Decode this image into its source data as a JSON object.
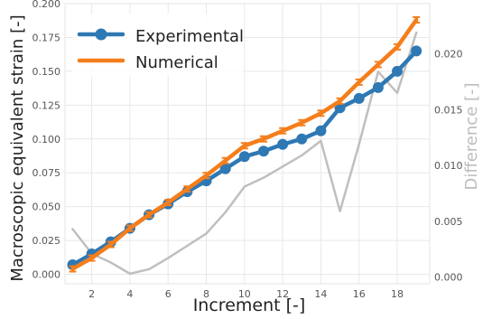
{
  "chart_data": {
    "type": "line",
    "xlabel": "Increment [-]",
    "ylabel": "Macroscopic equivalent strain [-]",
    "y2label": "Difference [-]",
    "xlim": [
      0.6,
      19.7
    ],
    "ylim": [
      -0.007,
      0.2
    ],
    "y2lim": [
      -0.0006,
      0.0245
    ],
    "x_ticks": [
      2,
      4,
      6,
      8,
      10,
      12,
      14,
      16,
      18
    ],
    "y_ticks": [
      "0.000",
      "0.025",
      "0.050",
      "0.075",
      "0.100",
      "0.125",
      "0.150",
      "0.175",
      "0.200"
    ],
    "y2_ticks": [
      "0.000",
      "0.005",
      "0.010",
      "0.015",
      "0.020"
    ],
    "grid": true,
    "legend_position": "top-left",
    "x": [
      1,
      2,
      3,
      4,
      5,
      6,
      7,
      8,
      9,
      10,
      11,
      12,
      13,
      14,
      15,
      16,
      17,
      18,
      19
    ],
    "series": [
      {
        "name": "Experimental",
        "color": "#2e78b4",
        "axis": "left",
        "marker": "circle",
        "values": [
          0.007,
          0.015,
          0.024,
          0.034,
          0.044,
          0.052,
          0.061,
          0.069,
          0.078,
          0.087,
          0.091,
          0.096,
          0.1,
          0.106,
          0.123,
          0.13,
          0.138,
          0.15,
          0.165
        ]
      },
      {
        "name": "Numerical",
        "color": "#f57e1c",
        "axis": "left",
        "marker": "errorbar",
        "values": [
          0.004,
          0.012,
          0.022,
          0.034,
          0.044,
          0.053,
          0.063,
          0.073,
          0.084,
          0.095,
          0.1,
          0.106,
          0.112,
          0.119,
          0.128,
          0.142,
          0.155,
          0.168,
          0.188
        ],
        "errors": [
          0.002,
          0.002,
          0.002,
          0.002,
          0.002,
          0.002,
          0.002,
          0.002,
          0.002,
          0.002,
          0.002,
          0.002,
          0.002,
          0.002,
          0.002,
          0.002,
          0.002,
          0.002,
          0.002
        ]
      },
      {
        "color": "#bfbfbf",
        "axis": "right",
        "marker": "none",
        "values": [
          0.0043,
          0.0021,
          0.0013,
          0.0003,
          0.0007,
          0.0017,
          0.0028,
          0.0039,
          0.0058,
          0.0081,
          0.0089,
          0.0099,
          0.0109,
          0.0122,
          0.0059,
          0.0119,
          0.0184,
          0.0165,
          0.0219
        ]
      }
    ]
  }
}
